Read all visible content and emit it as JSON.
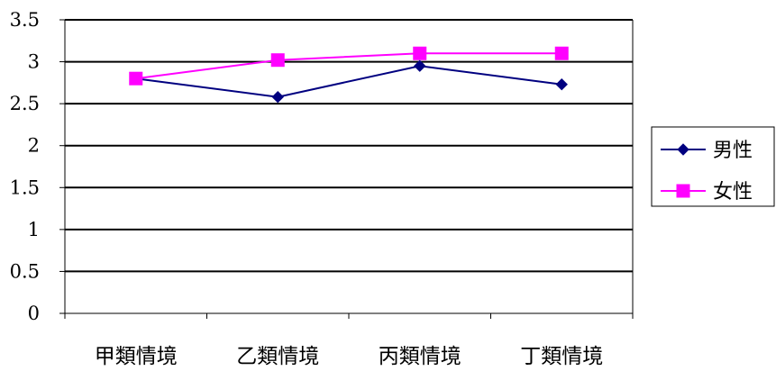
{
  "chart_data": {
    "type": "line",
    "title": "",
    "xlabel": "",
    "ylabel": "",
    "categories": [
      "甲類情境",
      "乙類情境",
      "丙類情境",
      "丁類情境"
    ],
    "ylim": [
      0,
      3.5
    ],
    "yticks": [
      "0",
      "0.5",
      "1",
      "1.5",
      "2",
      "2.5",
      "3",
      "3.5"
    ],
    "grid": true,
    "legend_position": "right",
    "series": [
      {
        "name": "男性",
        "values": [
          2.8,
          2.58,
          2.95,
          2.73
        ],
        "color": "#000080",
        "marker": "diamond"
      },
      {
        "name": "女性",
        "values": [
          2.8,
          3.02,
          3.1,
          3.1
        ],
        "color": "#ff00ff",
        "marker": "square"
      }
    ]
  }
}
